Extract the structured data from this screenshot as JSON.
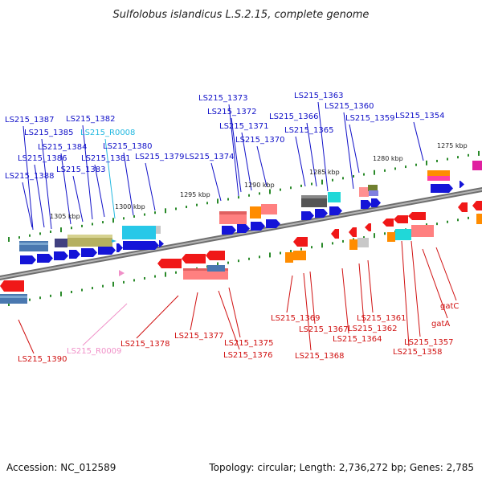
{
  "title": "Sulfolobus islandicus L.S.2.15, complete genome",
  "footer": {
    "accession": "Accession: NC_012589",
    "summary": "Topology: circular; Length: 2,736,272 bp; Genes: 2,785"
  },
  "colors": {
    "forward_label": "#1010c8",
    "reverse_label": "#d01010",
    "rna_forward_label": "#22b8e0",
    "rna_reverse_label": "#f090c8",
    "backbone": "#7a7a7a",
    "tick": "#2a8a2a"
  },
  "coordinates": [
    "1275 kbp",
    "1280 kbp",
    "1285 kbp",
    "1290 kbp",
    "1295 kbp",
    "1300 kbp",
    "1305 kbp"
  ],
  "forward_labels": [
    "LS215_1354",
    "LS215_1359",
    "LS215_1360",
    "LS215_1363",
    "LS215_1365",
    "LS215_1366",
    "LS215_1370",
    "LS215_1371",
    "LS215_1372",
    "LS215_1373",
    "LS215_1374",
    "LS215_1379",
    "LS215_1380",
    "LS215_R0008",
    "LS215_1381",
    "LS215_1382",
    "LS215_1383",
    "LS215_1384",
    "LS215_1385",
    "LS215_1386",
    "LS215_1387",
    "LS215_1388"
  ],
  "reverse_labels": [
    "gatC",
    "gatA",
    "LS215_1357",
    "LS215_1358",
    "LS215_1361",
    "LS215_1362",
    "LS215_1364",
    "LS215_1367",
    "LS215_1368",
    "LS215_1369",
    "LS215_1375",
    "LS215_1376",
    "LS215_1377",
    "LS215_1378",
    "LS215_R0009",
    "LS215_1390"
  ]
}
